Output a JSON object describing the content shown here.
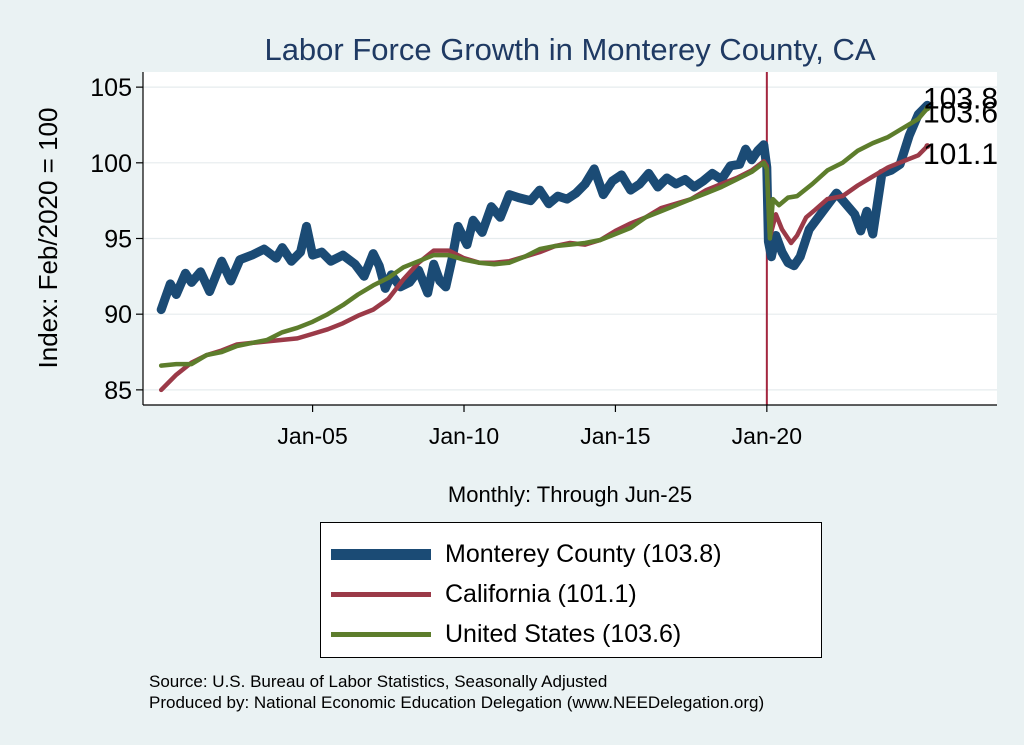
{
  "chart_data": {
    "type": "line",
    "title": "Labor Force Growth in Monterey  County, CA",
    "xlabel": "Monthly: Through Jun-25",
    "ylabel": "Index: Feb/2020 = 100",
    "ylim": [
      84,
      106
    ],
    "xlim": [
      1999.4,
      2027.6
    ],
    "yticks": [
      85,
      90,
      95,
      100,
      105
    ],
    "xticks": [
      {
        "value": 2005.0,
        "label": "Jan-05"
      },
      {
        "value": 2010.0,
        "label": "Jan-10"
      },
      {
        "value": 2015.0,
        "label": "Jan-15"
      },
      {
        "value": 2020.0,
        "label": "Jan-20"
      }
    ],
    "reference_line": {
      "x": 2020.0,
      "color": "#a3263f"
    },
    "grid": "horizontal",
    "series": [
      {
        "name": "Monterey  County",
        "color": "#1b4b75",
        "final_value": 103.8,
        "final_label": "103.8",
        "legend": "Monterey  County (103.8)",
        "points": [
          [
            2000.0,
            90.3
          ],
          [
            2000.3,
            92.0
          ],
          [
            2000.5,
            91.3
          ],
          [
            2000.8,
            92.7
          ],
          [
            2001.0,
            92.1
          ],
          [
            2001.3,
            92.8
          ],
          [
            2001.6,
            91.5
          ],
          [
            2002.0,
            93.5
          ],
          [
            2002.3,
            92.2
          ],
          [
            2002.6,
            93.6
          ],
          [
            2003.0,
            93.9
          ],
          [
            2003.4,
            94.3
          ],
          [
            2003.8,
            93.7
          ],
          [
            2004.0,
            94.4
          ],
          [
            2004.3,
            93.5
          ],
          [
            2004.6,
            94.1
          ],
          [
            2004.8,
            95.8
          ],
          [
            2005.0,
            93.9
          ],
          [
            2005.3,
            94.1
          ],
          [
            2005.6,
            93.5
          ],
          [
            2006.0,
            93.9
          ],
          [
            2006.4,
            93.3
          ],
          [
            2006.7,
            92.5
          ],
          [
            2007.0,
            94.0
          ],
          [
            2007.2,
            93.2
          ],
          [
            2007.4,
            91.7
          ],
          [
            2007.6,
            92.6
          ],
          [
            2007.9,
            91.8
          ],
          [
            2008.2,
            92.1
          ],
          [
            2008.5,
            92.9
          ],
          [
            2008.8,
            91.4
          ],
          [
            2009.0,
            93.3
          ],
          [
            2009.2,
            92.2
          ],
          [
            2009.4,
            91.8
          ],
          [
            2009.6,
            93.6
          ],
          [
            2009.8,
            95.8
          ],
          [
            2010.1,
            94.6
          ],
          [
            2010.3,
            96.2
          ],
          [
            2010.6,
            95.4
          ],
          [
            2010.9,
            97.1
          ],
          [
            2011.2,
            96.4
          ],
          [
            2011.5,
            97.9
          ],
          [
            2011.8,
            97.7
          ],
          [
            2012.2,
            97.5
          ],
          [
            2012.5,
            98.2
          ],
          [
            2012.8,
            97.3
          ],
          [
            2013.1,
            97.8
          ],
          [
            2013.4,
            97.6
          ],
          [
            2013.7,
            98.0
          ],
          [
            2014.0,
            98.6
          ],
          [
            2014.3,
            99.6
          ],
          [
            2014.6,
            97.9
          ],
          [
            2014.9,
            98.8
          ],
          [
            2015.2,
            99.2
          ],
          [
            2015.5,
            98.2
          ],
          [
            2015.8,
            98.6
          ],
          [
            2016.1,
            99.3
          ],
          [
            2016.4,
            98.4
          ],
          [
            2016.7,
            99.0
          ],
          [
            2017.0,
            98.6
          ],
          [
            2017.3,
            98.9
          ],
          [
            2017.6,
            98.4
          ],
          [
            2017.9,
            98.8
          ],
          [
            2018.2,
            99.3
          ],
          [
            2018.5,
            98.9
          ],
          [
            2018.8,
            99.8
          ],
          [
            2019.1,
            99.9
          ],
          [
            2019.3,
            100.9
          ],
          [
            2019.5,
            100.2
          ],
          [
            2019.7,
            100.8
          ],
          [
            2019.9,
            101.2
          ],
          [
            2020.0,
            99.7
          ],
          [
            2020.05,
            94.8
          ],
          [
            2020.15,
            93.8
          ],
          [
            2020.3,
            95.2
          ],
          [
            2020.5,
            94.1
          ],
          [
            2020.7,
            93.4
          ],
          [
            2020.9,
            93.2
          ],
          [
            2021.1,
            93.8
          ],
          [
            2021.4,
            95.6
          ],
          [
            2021.7,
            96.4
          ],
          [
            2022.0,
            97.2
          ],
          [
            2022.3,
            98.0
          ],
          [
            2022.6,
            97.3
          ],
          [
            2022.9,
            96.6
          ],
          [
            2023.1,
            95.5
          ],
          [
            2023.3,
            96.8
          ],
          [
            2023.5,
            95.3
          ],
          [
            2023.8,
            99.3
          ],
          [
            2024.1,
            99.5
          ],
          [
            2024.4,
            99.9
          ],
          [
            2024.7,
            101.8
          ],
          [
            2025.0,
            103.2
          ],
          [
            2025.3,
            103.8
          ]
        ]
      },
      {
        "name": "California",
        "color": "#9b3a48",
        "final_value": 101.1,
        "final_label": "101.1",
        "legend": "California (101.1)",
        "points": [
          [
            2000.0,
            85.0
          ],
          [
            2000.5,
            86.0
          ],
          [
            2001.0,
            86.8
          ],
          [
            2001.5,
            87.3
          ],
          [
            2002.0,
            87.6
          ],
          [
            2002.5,
            88.0
          ],
          [
            2003.0,
            88.1
          ],
          [
            2003.5,
            88.2
          ],
          [
            2004.0,
            88.3
          ],
          [
            2004.5,
            88.4
          ],
          [
            2005.0,
            88.7
          ],
          [
            2005.5,
            89.0
          ],
          [
            2006.0,
            89.4
          ],
          [
            2006.5,
            89.9
          ],
          [
            2007.0,
            90.3
          ],
          [
            2007.5,
            91.0
          ],
          [
            2008.0,
            92.3
          ],
          [
            2008.5,
            93.4
          ],
          [
            2009.0,
            94.2
          ],
          [
            2009.5,
            94.2
          ],
          [
            2010.0,
            93.7
          ],
          [
            2010.5,
            93.4
          ],
          [
            2011.0,
            93.4
          ],
          [
            2011.5,
            93.5
          ],
          [
            2012.0,
            93.8
          ],
          [
            2012.5,
            94.1
          ],
          [
            2013.0,
            94.5
          ],
          [
            2013.5,
            94.7
          ],
          [
            2014.0,
            94.6
          ],
          [
            2014.5,
            94.9
          ],
          [
            2015.0,
            95.5
          ],
          [
            2015.5,
            96.0
          ],
          [
            2016.0,
            96.4
          ],
          [
            2016.5,
            97.0
          ],
          [
            2017.0,
            97.3
          ],
          [
            2017.5,
            97.6
          ],
          [
            2018.0,
            98.2
          ],
          [
            2018.5,
            98.6
          ],
          [
            2019.0,
            99.0
          ],
          [
            2019.5,
            99.5
          ],
          [
            2019.9,
            100.1
          ],
          [
            2020.0,
            99.8
          ],
          [
            2020.1,
            95.1
          ],
          [
            2020.3,
            96.6
          ],
          [
            2020.5,
            95.6
          ],
          [
            2020.8,
            94.7
          ],
          [
            2021.0,
            95.2
          ],
          [
            2021.3,
            96.4
          ],
          [
            2021.6,
            96.9
          ],
          [
            2022.0,
            97.6
          ],
          [
            2022.5,
            97.8
          ],
          [
            2023.0,
            98.5
          ],
          [
            2023.5,
            99.1
          ],
          [
            2024.0,
            99.7
          ],
          [
            2024.5,
            100.1
          ],
          [
            2025.0,
            100.5
          ],
          [
            2025.3,
            101.1
          ]
        ]
      },
      {
        "name": "United States",
        "color": "#5d7d2c",
        "final_value": 103.6,
        "final_label": "103.6",
        "legend": "United States (103.6)",
        "points": [
          [
            2000.0,
            86.6
          ],
          [
            2000.5,
            86.7
          ],
          [
            2001.0,
            86.7
          ],
          [
            2001.5,
            87.3
          ],
          [
            2002.0,
            87.5
          ],
          [
            2002.5,
            87.9
          ],
          [
            2003.0,
            88.1
          ],
          [
            2003.5,
            88.3
          ],
          [
            2004.0,
            88.8
          ],
          [
            2004.5,
            89.1
          ],
          [
            2005.0,
            89.5
          ],
          [
            2005.5,
            90.0
          ],
          [
            2006.0,
            90.6
          ],
          [
            2006.5,
            91.3
          ],
          [
            2007.0,
            91.9
          ],
          [
            2007.5,
            92.4
          ],
          [
            2008.0,
            93.1
          ],
          [
            2008.5,
            93.5
          ],
          [
            2009.0,
            93.9
          ],
          [
            2009.5,
            93.9
          ],
          [
            2010.0,
            93.6
          ],
          [
            2010.5,
            93.4
          ],
          [
            2011.0,
            93.3
          ],
          [
            2011.5,
            93.4
          ],
          [
            2012.0,
            93.8
          ],
          [
            2012.5,
            94.3
          ],
          [
            2013.0,
            94.5
          ],
          [
            2013.5,
            94.6
          ],
          [
            2014.0,
            94.7
          ],
          [
            2014.5,
            94.9
          ],
          [
            2015.0,
            95.3
          ],
          [
            2015.5,
            95.7
          ],
          [
            2016.0,
            96.4
          ],
          [
            2016.5,
            96.8
          ],
          [
            2017.0,
            97.2
          ],
          [
            2017.5,
            97.6
          ],
          [
            2018.0,
            98.0
          ],
          [
            2018.5,
            98.4
          ],
          [
            2019.0,
            98.9
          ],
          [
            2019.5,
            99.4
          ],
          [
            2019.9,
            100.0
          ],
          [
            2020.0,
            99.6
          ],
          [
            2020.1,
            95.0
          ],
          [
            2020.2,
            97.6
          ],
          [
            2020.4,
            97.2
          ],
          [
            2020.7,
            97.7
          ],
          [
            2021.0,
            97.8
          ],
          [
            2021.5,
            98.6
          ],
          [
            2022.0,
            99.5
          ],
          [
            2022.5,
            100.0
          ],
          [
            2023.0,
            100.8
          ],
          [
            2023.5,
            101.3
          ],
          [
            2024.0,
            101.7
          ],
          [
            2024.5,
            102.3
          ],
          [
            2025.0,
            102.9
          ],
          [
            2025.3,
            103.6
          ]
        ]
      }
    ]
  },
  "source": "Source: U.S. Bureau of Labor Statistics, Seasonally Adjusted",
  "produced_by": "Produced by: National Economic Education Delegation (www.NEEDelegation.org)"
}
